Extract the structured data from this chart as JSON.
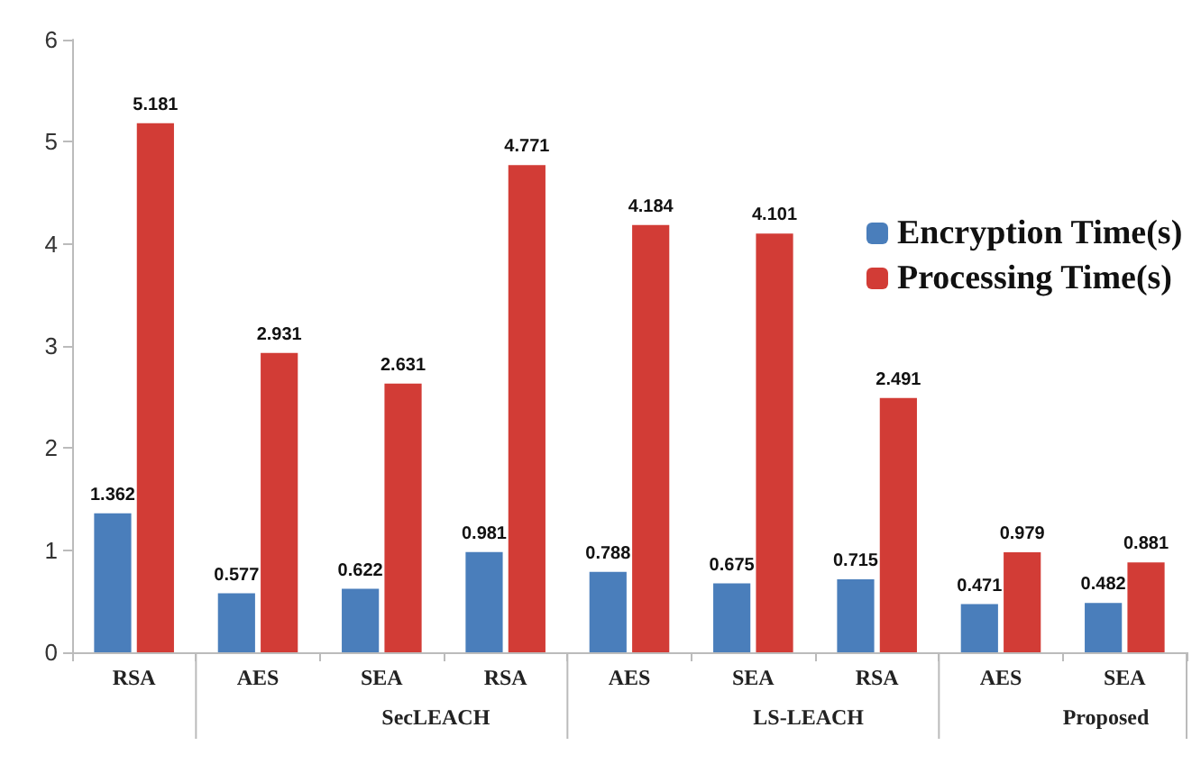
{
  "chart_data": {
    "type": "bar",
    "categories": [
      "RSA",
      "AES",
      "SEA",
      "RSA",
      "AES",
      "SEA",
      "RSA",
      "AES",
      "SEA"
    ],
    "series": [
      {
        "name": "Encryption Time(s)",
        "color": "#4a7ebb",
        "values": [
          1.362,
          0.577,
          0.622,
          0.981,
          0.788,
          0.675,
          0.715,
          0.471,
          0.482
        ]
      },
      {
        "name": "Processing Time(s)",
        "color": "#d23c36",
        "values": [
          5.181,
          2.931,
          2.631,
          4.771,
          4.184,
          4.101,
          2.491,
          0.979,
          0.881
        ]
      }
    ],
    "ylim": [
      0,
      6
    ],
    "yticks": [
      0,
      1,
      2,
      3,
      4,
      5,
      6
    ],
    "data_labels": true,
    "grid": false,
    "legend": "right",
    "annotations": [
      "SecLEACH",
      "LS-LEACH",
      "Proposed"
    ]
  }
}
